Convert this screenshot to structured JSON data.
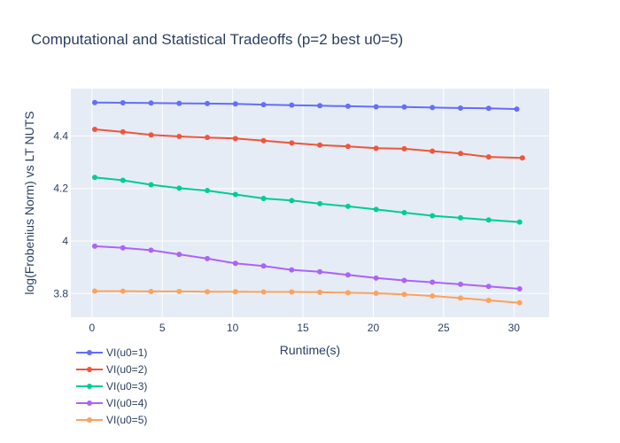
{
  "chart_data": {
    "type": "line",
    "title": "Computational and Statistical Tradeoffs (p=2 best u0=5)",
    "xlabel": "Runtime(s)",
    "ylabel": "log(Frobenius Norm) vs LT NUTS",
    "xlim": [
      -1.5,
      32.5
    ],
    "ylim": [
      3.71,
      4.58
    ],
    "xticks": [
      0,
      5,
      10,
      15,
      20,
      25,
      30
    ],
    "xtick_labels": [
      "0",
      "5",
      "10",
      "15",
      "20",
      "25",
      "30"
    ],
    "yticks": [
      3.8,
      4.0,
      4.2,
      4.4
    ],
    "ytick_labels": [
      "3.8",
      "4",
      "4.2",
      "4.4"
    ],
    "grid": true,
    "legend_position": "bottom-left",
    "series": [
      {
        "name": "VI(u0=1)",
        "color": "#636efa",
        "x": [
          0.2,
          2.2,
          4.2,
          6.2,
          8.2,
          10.2,
          12.2,
          14.2,
          16.2,
          18.2,
          20.2,
          22.2,
          24.2,
          26.2,
          28.2,
          30.2
        ],
        "y": [
          4.527,
          4.526,
          4.525,
          4.524,
          4.523,
          4.522,
          4.519,
          4.517,
          4.515,
          4.513,
          4.511,
          4.51,
          4.508,
          4.506,
          4.505,
          4.502
        ]
      },
      {
        "name": "VI(u0=2)",
        "color": "#ef553b",
        "x": [
          0.2,
          2.2,
          4.2,
          6.2,
          8.2,
          10.2,
          12.2,
          14.2,
          16.2,
          18.2,
          20.2,
          22.2,
          24.2,
          26.2,
          28.2,
          30.6
        ],
        "y": [
          4.425,
          4.415,
          4.404,
          4.398,
          4.394,
          4.39,
          4.382,
          4.373,
          4.365,
          4.36,
          4.353,
          4.351,
          4.342,
          4.333,
          4.32,
          4.316
        ]
      },
      {
        "name": "VI(u0=3)",
        "color": "#00cc96",
        "x": [
          0.2,
          2.2,
          4.2,
          6.2,
          8.2,
          10.2,
          12.2,
          14.2,
          16.2,
          18.2,
          20.2,
          22.2,
          24.2,
          26.2,
          28.2,
          30.4
        ],
        "y": [
          4.242,
          4.231,
          4.214,
          4.201,
          4.192,
          4.177,
          4.162,
          4.154,
          4.142,
          4.132,
          4.12,
          4.108,
          4.096,
          4.088,
          4.08,
          4.072
        ]
      },
      {
        "name": "VI(u0=4)",
        "color": "#ab63fa",
        "x": [
          0.2,
          2.2,
          4.2,
          6.2,
          8.2,
          10.2,
          12.2,
          14.2,
          16.2,
          18.2,
          20.2,
          22.2,
          24.2,
          26.2,
          28.2,
          30.4
        ],
        "y": [
          3.98,
          3.974,
          3.965,
          3.949,
          3.933,
          3.915,
          3.905,
          3.89,
          3.883,
          3.871,
          3.859,
          3.85,
          3.843,
          3.835,
          3.827,
          3.818
        ]
      },
      {
        "name": "VI(u0=5)",
        "color": "#ffa15a",
        "x": [
          0.2,
          2.2,
          4.2,
          6.2,
          8.2,
          10.2,
          12.2,
          14.2,
          16.2,
          18.2,
          20.2,
          22.2,
          24.2,
          26.2,
          28.2,
          30.4
        ],
        "y": [
          3.809,
          3.809,
          3.808,
          3.808,
          3.807,
          3.807,
          3.806,
          3.806,
          3.805,
          3.803,
          3.801,
          3.797,
          3.791,
          3.783,
          3.774,
          3.765
        ]
      }
    ]
  }
}
